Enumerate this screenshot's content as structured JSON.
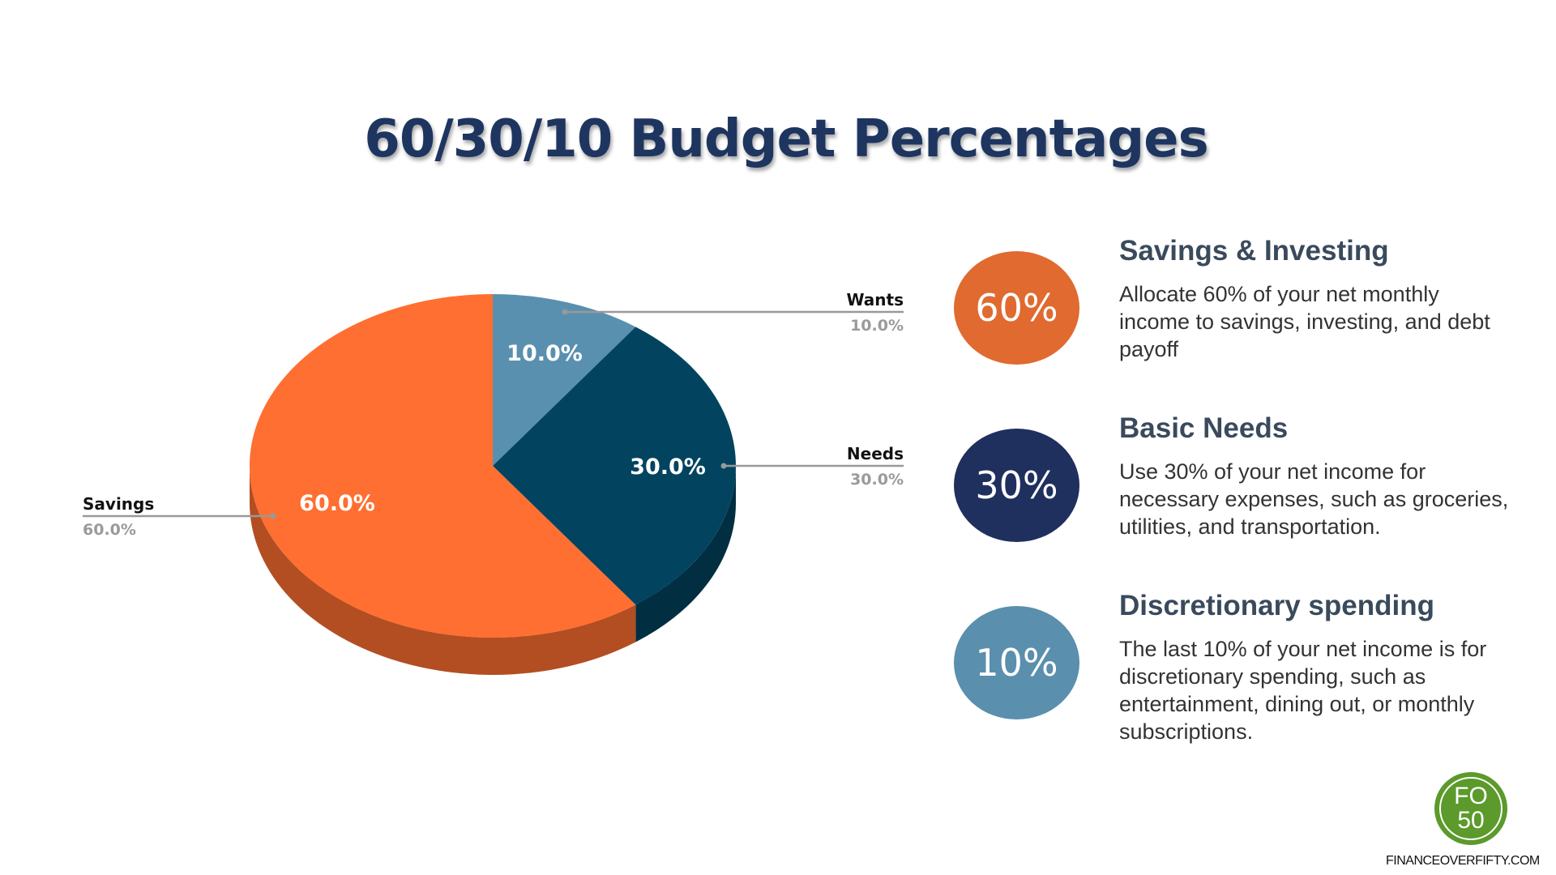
{
  "title": "60/30/10 Budget Percentages",
  "chart_data": {
    "type": "pie",
    "style": "3d",
    "title": "",
    "slices": [
      {
        "name": "Wants",
        "value": 10.0,
        "label": "10.0%",
        "color": "#5A90AF",
        "side_color": "#3E6880"
      },
      {
        "name": "Needs",
        "value": 30.0,
        "label": "30.0%",
        "color": "#02445F",
        "side_color": "#012E40"
      },
      {
        "name": "Savings",
        "value": 60.0,
        "label": "60.0%",
        "color": "#FF6F31",
        "side_color": "#B34E22"
      }
    ]
  },
  "items": [
    {
      "badge": "60%",
      "color": "#E06A30",
      "heading": "Savings & Investing",
      "lines": [
        "Allocate 60% of your net monthly",
        "income to savings, investing, and debt",
        "payoff"
      ]
    },
    {
      "badge": "30%",
      "color": "#1F2F5E",
      "heading": "Basic Needs",
      "lines": [
        "Use 30% of your net income for",
        "necessary expenses, such as groceries,",
        "utilities, and transportation."
      ]
    },
    {
      "badge": "10%",
      "color": "#5A8FAD",
      "heading": "Discretionary spending",
      "lines": [
        "The last 10% of your net income is for",
        "discretionary spending, such as",
        "entertainment, dining out, or monthly",
        "subscriptions."
      ]
    }
  ],
  "logo": {
    "line1": "FO",
    "line2": "50",
    "color": "#5B9A2B"
  },
  "url": "FINANCEOVERFIFTY.COM"
}
